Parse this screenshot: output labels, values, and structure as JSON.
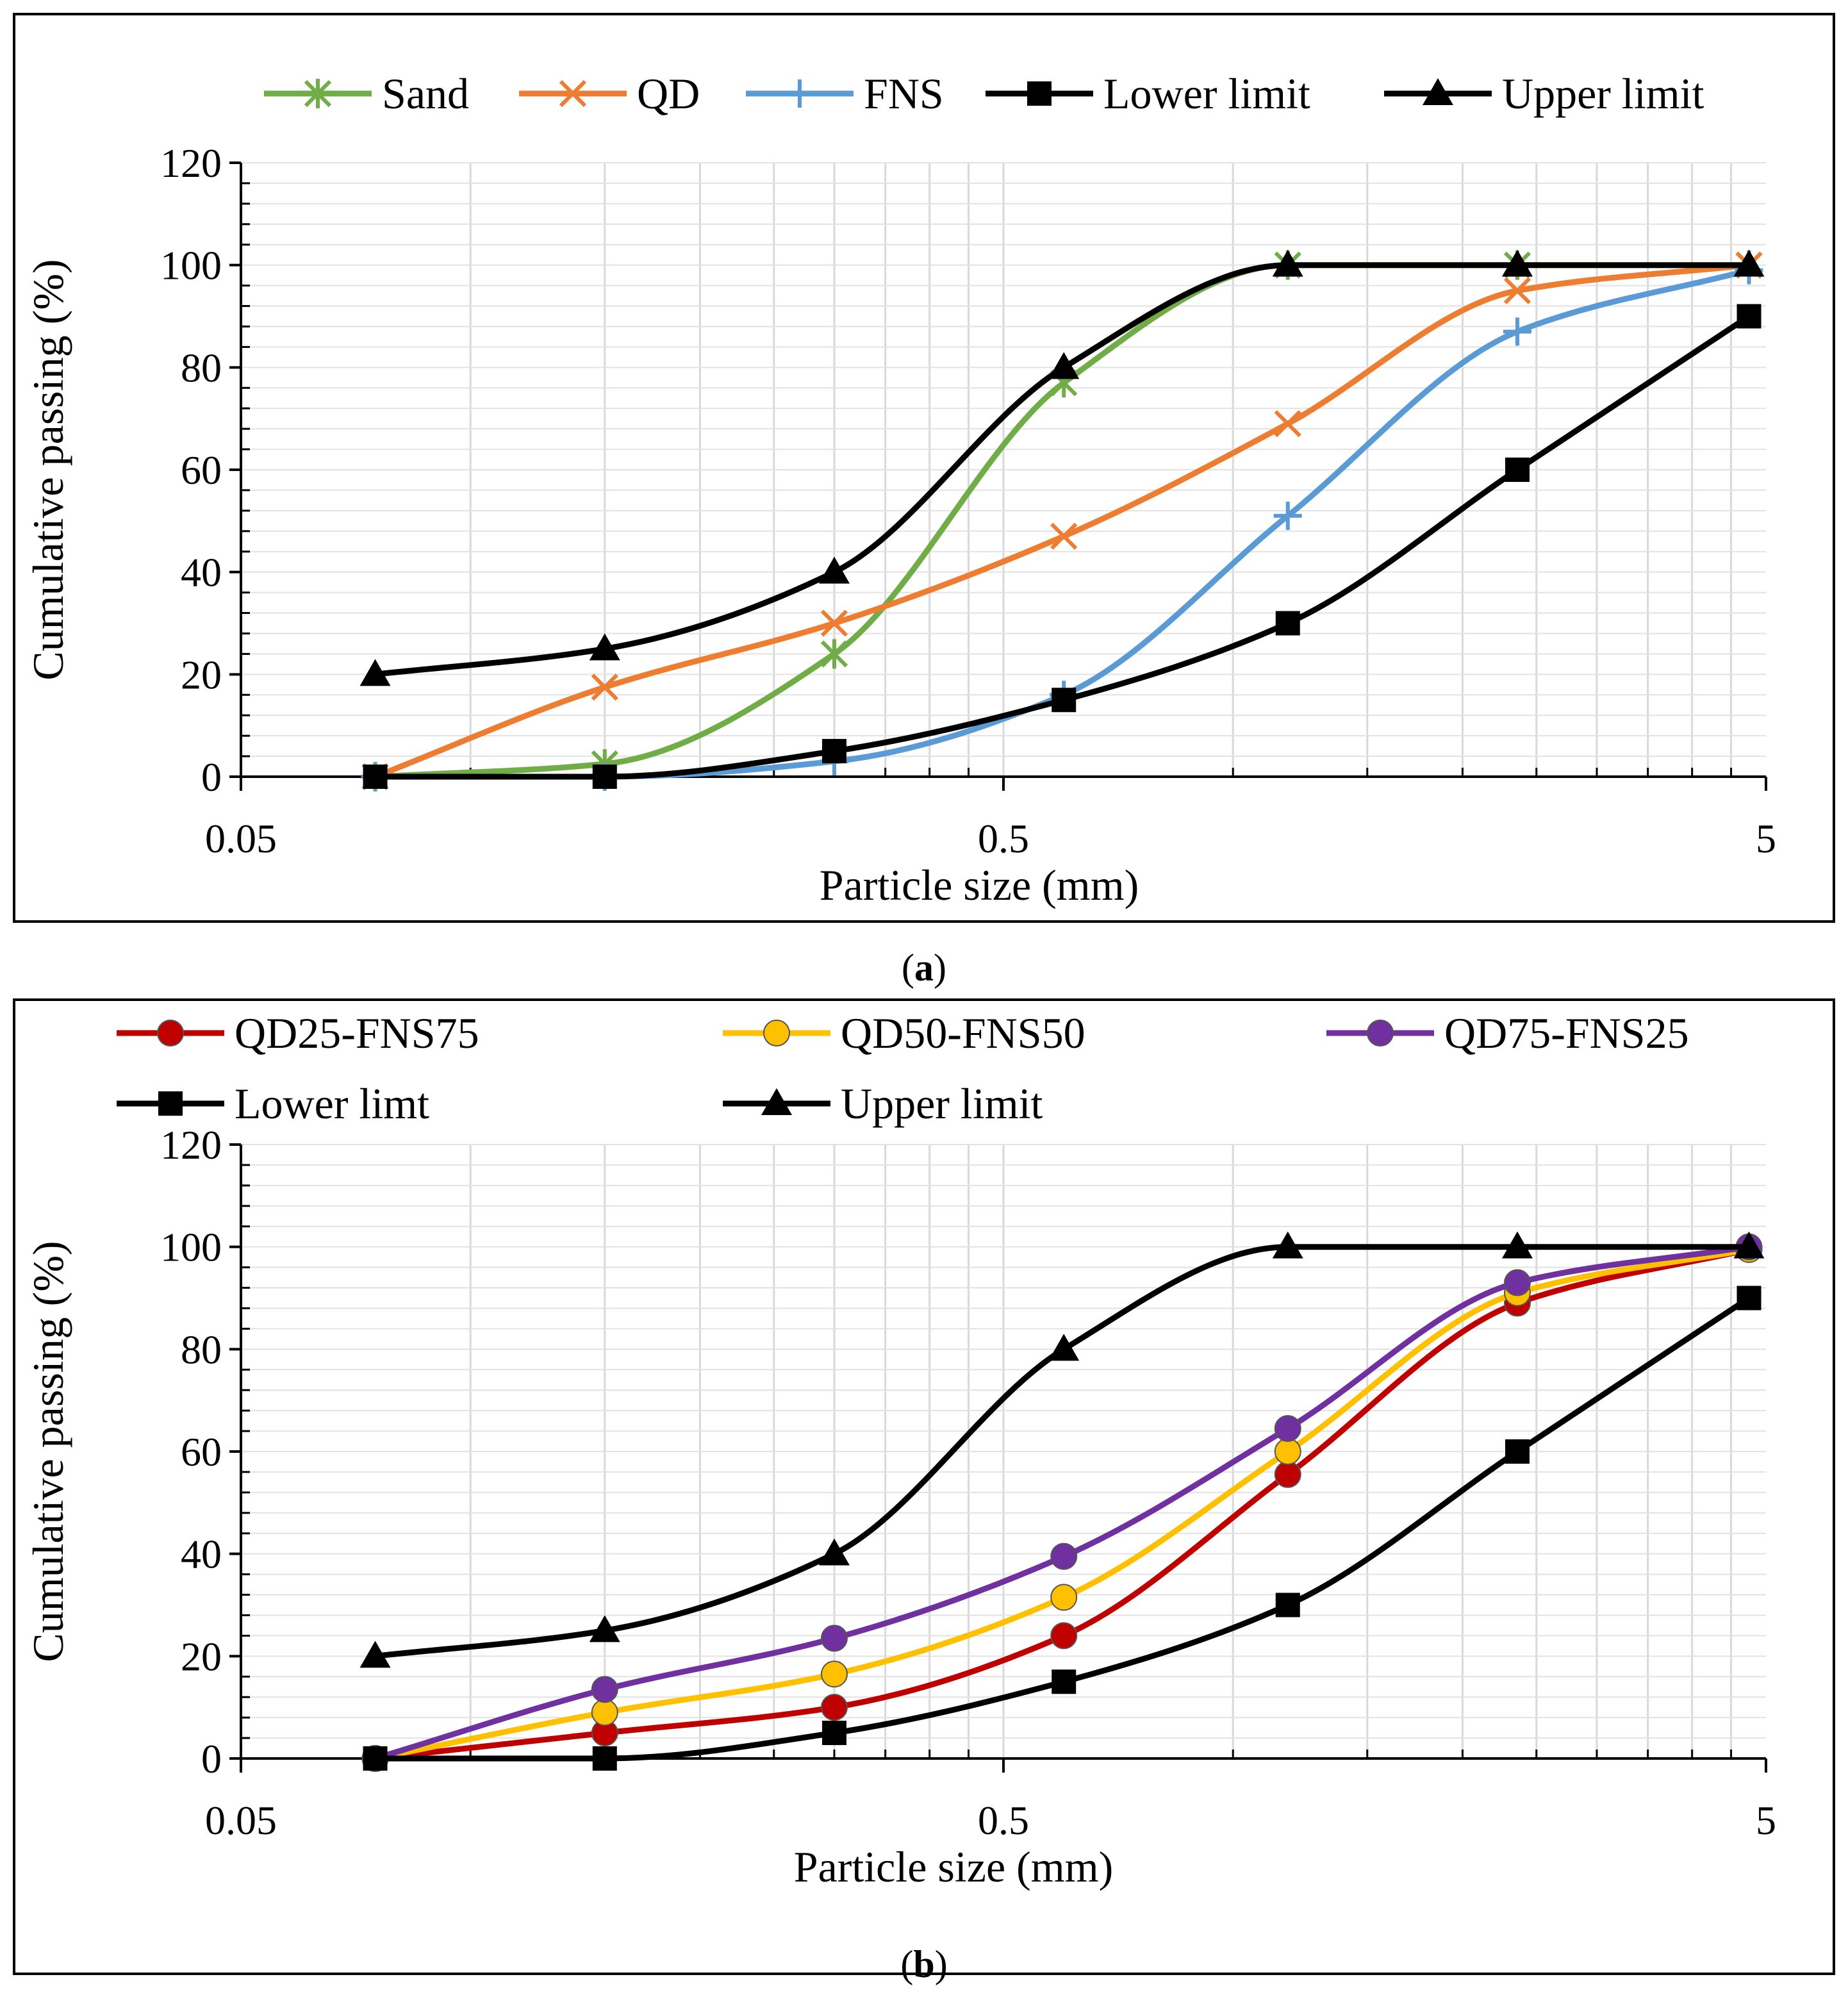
{
  "figure": {
    "panels": [
      "a",
      "b"
    ]
  },
  "chart_data": [
    {
      "id": "a",
      "type": "line",
      "caption_letter": "a",
      "xlabel": "Particle size (mm)",
      "ylabel": "Cumulative passing (%)",
      "x_scale": "log",
      "xlim": [
        0.05,
        5
      ],
      "ylim": [
        0,
        120
      ],
      "x_tick_labels": [
        "0.05",
        "0.5",
        "5"
      ],
      "x_tick_values": [
        0.05,
        0.5,
        5
      ],
      "y_ticks": [
        0,
        20,
        40,
        60,
        80,
        100,
        120
      ],
      "grid": true,
      "legend_position": "top",
      "x": [
        0.075,
        0.15,
        0.3,
        0.6,
        1.18,
        2.36,
        4.75
      ],
      "series": [
        {
          "name": "Sand",
          "color": "#70AD47",
          "marker": "asterisk",
          "values": [
            0,
            2.5,
            24,
            77,
            100,
            100,
            100
          ]
        },
        {
          "name": "QD",
          "color": "#ED7D31",
          "marker": "x",
          "values": [
            0,
            17.5,
            30,
            47,
            69,
            95,
            100
          ]
        },
        {
          "name": "FNS",
          "color": "#5B9BD5",
          "marker": "plus",
          "values": [
            0,
            0,
            3,
            16,
            51,
            87,
            99
          ]
        },
        {
          "name": "Lower limit",
          "color": "#000000",
          "marker": "square",
          "values": [
            0,
            0,
            5,
            15,
            30,
            60,
            90
          ]
        },
        {
          "name": "Upper limit",
          "color": "#000000",
          "marker": "triangle",
          "values": [
            20,
            25,
            40,
            80,
            100,
            100,
            100
          ]
        }
      ]
    },
    {
      "id": "b",
      "type": "line",
      "caption_letter": "b",
      "xlabel": "Particle size (mm)",
      "ylabel": "Cumulative passing (%)",
      "x_scale": "log",
      "xlim": [
        0.05,
        5
      ],
      "ylim": [
        0,
        120
      ],
      "x_tick_labels": [
        "0.05",
        "0.5",
        "5"
      ],
      "x_tick_values": [
        0.05,
        0.5,
        5
      ],
      "y_ticks": [
        0,
        20,
        40,
        60,
        80,
        100,
        120
      ],
      "grid": true,
      "legend_position": "top",
      "x": [
        0.075,
        0.15,
        0.3,
        0.6,
        1.18,
        2.36,
        4.75
      ],
      "series": [
        {
          "name": "QD25-FNS75",
          "color": "#C00000",
          "marker": "circle",
          "values": [
            0,
            5,
            10,
            24,
            55.5,
            89,
            99.5
          ]
        },
        {
          "name": "QD50-FNS50",
          "color": "#FFC000",
          "marker": "circle",
          "values": [
            0,
            9,
            16.5,
            31.5,
            60,
            91,
            99.5
          ]
        },
        {
          "name": "QD75-FNS25",
          "color": "#7030A0",
          "marker": "circle",
          "values": [
            0,
            13.5,
            23.5,
            39.5,
            64.5,
            93,
            100
          ]
        },
        {
          "name": "Lower limt",
          "color": "#000000",
          "marker": "square",
          "values": [
            0,
            0,
            5,
            15,
            30,
            60,
            90
          ]
        },
        {
          "name": "Upper limit",
          "color": "#000000",
          "marker": "triangle",
          "values": [
            20,
            25,
            40,
            80,
            100,
            100,
            100
          ]
        }
      ]
    }
  ]
}
